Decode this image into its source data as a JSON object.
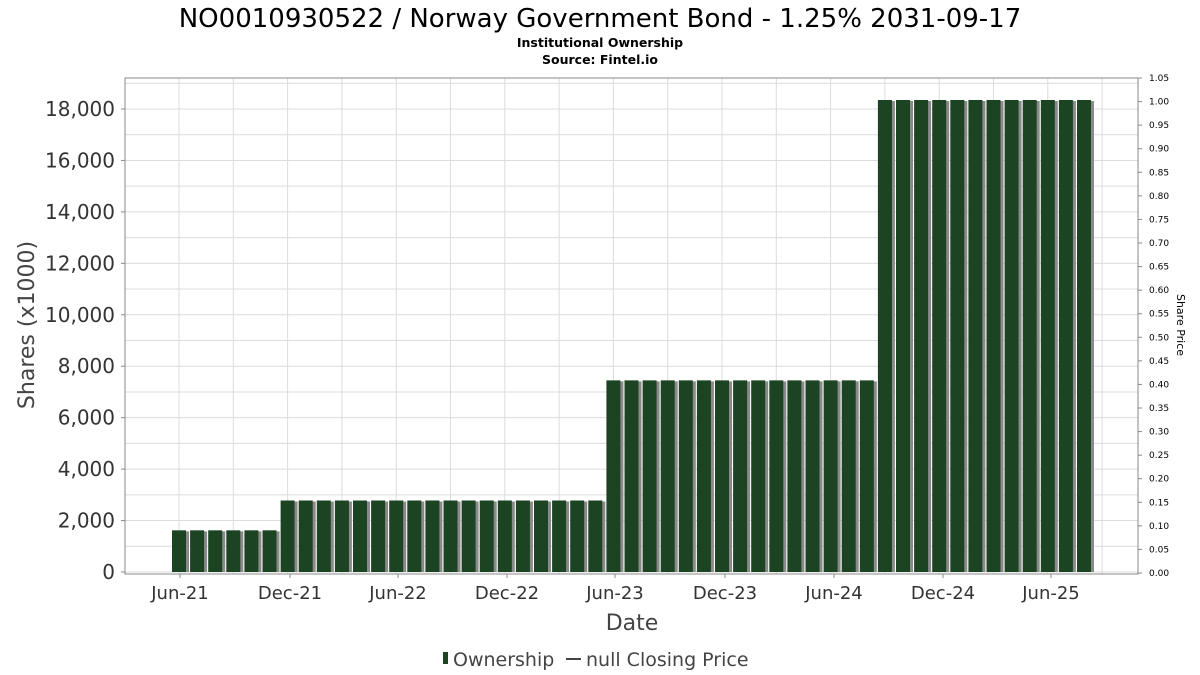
{
  "chart_data": {
    "type": "bar",
    "title": "NO0010930522 / Norway Government Bond - 1.25% 2031-09-17",
    "subtitle": "Institutional Ownership",
    "source": "Source: Fintel.io",
    "xlabel": "Date",
    "ylabel": "Shares (x1000)",
    "y2label": "Share Price",
    "ylim": [
      0,
      19000
    ],
    "y_ticks": [
      0,
      2000,
      4000,
      6000,
      8000,
      10000,
      12000,
      14000,
      16000,
      18000
    ],
    "y_tick_labels": [
      "0",
      "2,000",
      "4,000",
      "6,000",
      "8,000",
      "10,000",
      "12,000",
      "14,000",
      "16,000",
      "18,000"
    ],
    "y2lim": [
      0,
      1.05
    ],
    "y2_tick_labels": [
      "0.00",
      "0.05",
      "0.10",
      "0.15",
      "0.20",
      "0.25",
      "0.30",
      "0.35",
      "0.40",
      "0.45",
      "0.50",
      "0.55",
      "0.60",
      "0.65",
      "0.70",
      "0.75",
      "0.80",
      "0.85",
      "0.90",
      "0.95",
      "1.00",
      "1.05"
    ],
    "x_tick_labels": [
      "Jun-21",
      "Dec-21",
      "Jun-22",
      "Dec-22",
      "Jun-23",
      "Dec-23",
      "Jun-24",
      "Dec-24",
      "Jun-25"
    ],
    "grid": true,
    "legend_position": "bottom",
    "legend": [
      "Ownership",
      "null Closing Price"
    ],
    "colors": {
      "bar": "#1c4423",
      "bar_shadow": "#8a8a8a",
      "plot_border": "#888888"
    },
    "series": [
      {
        "name": "Ownership",
        "values": [
          1620,
          1620,
          1620,
          1620,
          1620,
          1620,
          2780,
          2780,
          2780,
          2780,
          2780,
          2780,
          2780,
          2780,
          2780,
          2780,
          2780,
          2780,
          2780,
          2780,
          2780,
          2780,
          2780,
          2780,
          7450,
          7450,
          7450,
          7450,
          7450,
          7450,
          7450,
          7450,
          7450,
          7450,
          7450,
          7450,
          7450,
          7450,
          7450,
          18350,
          18350,
          18350,
          18350,
          18350,
          18350,
          18350,
          18350,
          18350,
          18350,
          18350,
          18350
        ]
      }
    ]
  }
}
